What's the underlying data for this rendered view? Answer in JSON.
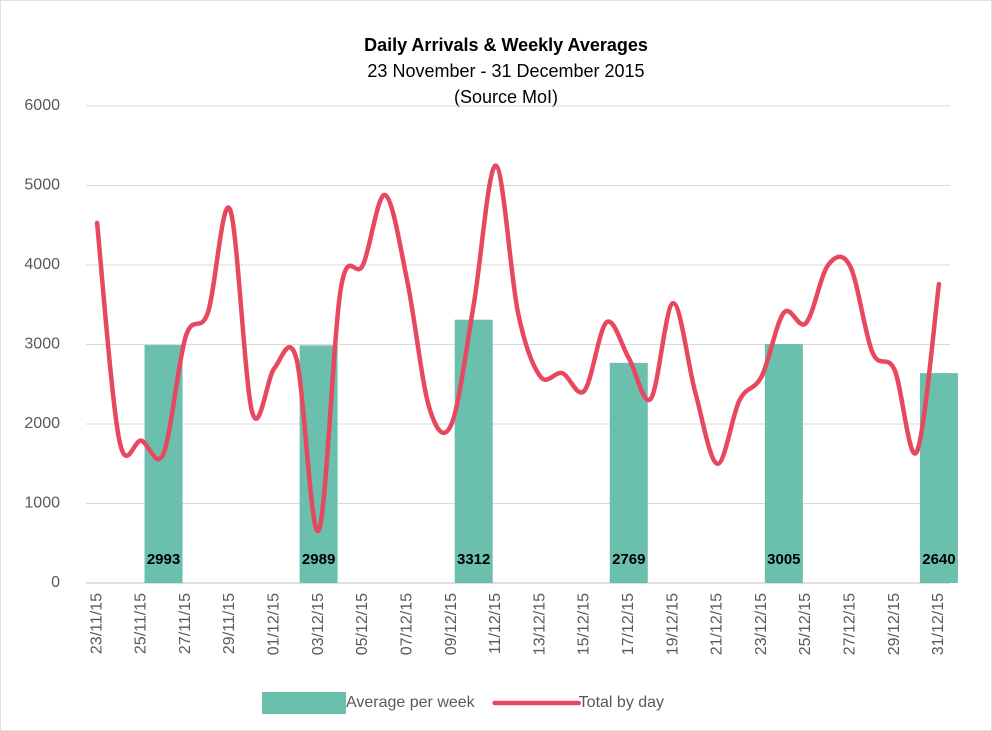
{
  "chart_data": {
    "type": "combo",
    "title": "Daily Arrivals & Weekly Averages",
    "subtitle": "23 November - 31 December 2015",
    "source": "(Source MoI)",
    "categories": [
      "23/11/15",
      null,
      "25/11/15",
      null,
      "27/11/15",
      null,
      "29/11/15",
      null,
      "01/12/15",
      null,
      "03/12/15",
      null,
      "05/12/15",
      null,
      "07/12/15",
      null,
      "09/12/15",
      null,
      "11/12/15",
      null,
      "13/12/15",
      null,
      "15/12/15",
      null,
      "17/12/15",
      null,
      "19/12/15",
      null,
      "21/12/15",
      null,
      "23/12/15",
      null,
      "25/12/15",
      null,
      "27/12/15",
      null,
      "29/12/15",
      null,
      "31/12/15"
    ],
    "series": [
      {
        "name": "Average per week",
        "type": "bar",
        "color": "#6abfad",
        "values": [
          null,
          null,
          null,
          2993,
          null,
          null,
          null,
          null,
          null,
          null,
          2989,
          null,
          null,
          null,
          null,
          null,
          null,
          3312,
          null,
          null,
          null,
          null,
          null,
          null,
          2769,
          null,
          null,
          null,
          null,
          null,
          null,
          3005,
          null,
          null,
          null,
          null,
          null,
          null,
          2640
        ]
      },
      {
        "name": "Total by day",
        "type": "line",
        "color": "#e8485f",
        "values": [
          4530,
          1800,
          1790,
          1630,
          3100,
          3400,
          4700,
          2150,
          2700,
          2820,
          660,
          3700,
          4000,
          4880,
          3800,
          2200,
          2000,
          3500,
          5250,
          3400,
          2600,
          2640,
          2420,
          3280,
          2830,
          2320,
          3520,
          2400,
          1500,
          2300,
          2600,
          3400,
          3270,
          4000,
          3980,
          2900,
          2680,
          1650,
          3760
        ]
      }
    ],
    "ylim": [
      0,
      6000
    ],
    "yticks": [
      0,
      1000,
      2000,
      3000,
      4000,
      5000,
      6000
    ],
    "grid": true,
    "legend": "bottom"
  }
}
